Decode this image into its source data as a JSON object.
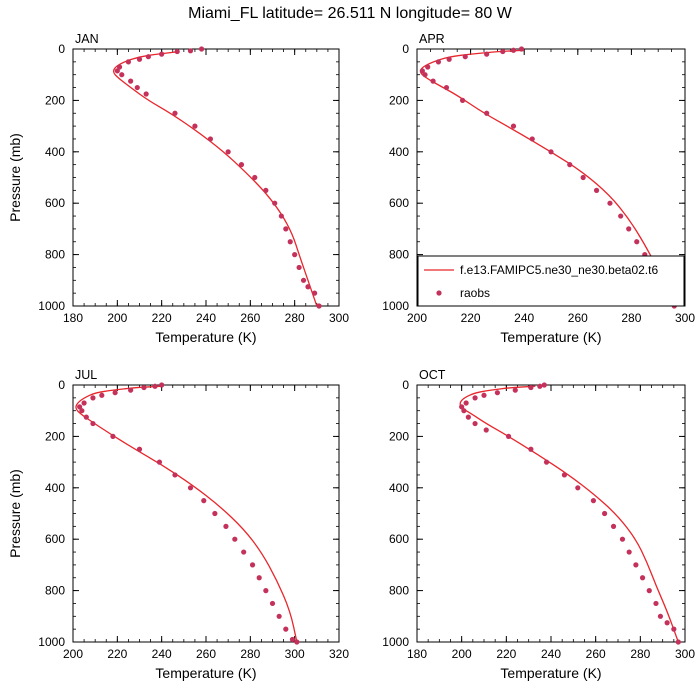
{
  "title": "Miami_FL  latitude= 26.511 N longitude= 80 W",
  "legend": {
    "model_label": "f.e13.FAMIPC5.ne30_ne30.beta02.t6",
    "obs_label": "raobs"
  },
  "colors": {
    "model_line": "#e8262b",
    "obs_marker": "#c4315b",
    "axis": "#000000",
    "background": "#ffffff"
  },
  "chart_data": [
    {
      "type": "line",
      "panel": "JAN",
      "xlabel": "Temperature (K)",
      "ylabel": "Pressure (mb)",
      "xlim": [
        180,
        300
      ],
      "ylim": [
        1000,
        0
      ],
      "xticks": [
        "180",
        "200",
        "220",
        "240",
        "260",
        "280",
        "300"
      ],
      "yticks": [
        "0",
        "200",
        "400",
        "600",
        "800",
        "1000"
      ],
      "series": [
        {
          "kind": "line",
          "x": [
            228,
            218,
            210,
            203,
            199,
            198,
            200,
            206,
            214,
            224,
            236,
            248,
            258,
            267,
            274,
            279,
            282,
            286,
            290
          ],
          "y": [
            10,
            20,
            30,
            50,
            70,
            90,
            110,
            150,
            200,
            250,
            320,
            400,
            480,
            560,
            640,
            720,
            800,
            900,
            1000
          ]
        },
        {
          "kind": "scatter",
          "x": [
            238,
            233,
            227,
            220,
            214,
            210,
            205,
            201,
            200,
            202,
            206,
            209,
            213,
            226,
            235,
            242,
            250,
            256,
            262,
            267,
            271,
            274,
            276,
            278,
            280,
            282,
            284,
            286,
            289,
            291
          ],
          "y": [
            0,
            7,
            10,
            20,
            30,
            40,
            50,
            70,
            85,
            100,
            125,
            150,
            175,
            250,
            300,
            350,
            400,
            450,
            500,
            550,
            600,
            650,
            700,
            750,
            800,
            850,
            900,
            925,
            950,
            1000
          ]
        }
      ]
    },
    {
      "type": "line",
      "panel": "APR",
      "xlabel": "Temperature (K)",
      "ylabel": "",
      "xlim": [
        200,
        300
      ],
      "ylim": [
        1000,
        0
      ],
      "xticks": [
        "200",
        "220",
        "240",
        "260",
        "280",
        "300"
      ],
      "yticks": [
        "0",
        "200",
        "400",
        "600",
        "800",
        "1000"
      ],
      "series": [
        {
          "kind": "line",
          "x": [
            240,
            230,
            220,
            212,
            206,
            202,
            201,
            203,
            208,
            215,
            225,
            237,
            250,
            262,
            272,
            279,
            285,
            291,
            296
          ],
          "y": [
            5,
            10,
            20,
            30,
            50,
            70,
            90,
            110,
            140,
            180,
            250,
            320,
            400,
            480,
            570,
            660,
            760,
            880,
            1000
          ]
        },
        {
          "kind": "scatter",
          "x": [
            239,
            236,
            232,
            226,
            218,
            212,
            208,
            204,
            202,
            203,
            206,
            211,
            217,
            226,
            236,
            243,
            250,
            257,
            262,
            267,
            272,
            276,
            279,
            282,
            285,
            288,
            290,
            293,
            296
          ],
          "y": [
            0,
            5,
            10,
            20,
            30,
            40,
            50,
            70,
            85,
            100,
            125,
            150,
            200,
            250,
            300,
            350,
            400,
            450,
            500,
            550,
            600,
            650,
            700,
            750,
            800,
            850,
            900,
            950,
            1000
          ]
        }
      ]
    },
    {
      "type": "line",
      "panel": "JUL",
      "xlabel": "Temperature (K)",
      "ylabel": "Pressure (mb)",
      "xlim": [
        200,
        320
      ],
      "ylim": [
        1000,
        0
      ],
      "xticks": [
        "200",
        "220",
        "240",
        "260",
        "280",
        "300",
        "320"
      ],
      "yticks": [
        "0",
        "200",
        "400",
        "600",
        "800",
        "1000"
      ],
      "series": [
        {
          "kind": "line",
          "x": [
            240,
            228,
            218,
            210,
            205,
            202,
            201,
            203,
            208,
            215,
            226,
            240,
            254,
            266,
            277,
            285,
            292,
            298,
            301
          ],
          "y": [
            5,
            10,
            20,
            30,
            50,
            70,
            90,
            110,
            140,
            180,
            240,
            310,
            390,
            470,
            560,
            650,
            760,
            880,
            1000
          ]
        },
        {
          "kind": "scatter",
          "x": [
            240,
            237,
            232,
            226,
            219,
            213,
            209,
            205,
            203,
            204,
            206,
            209,
            218,
            230,
            239,
            246,
            253,
            259,
            264,
            269,
            273,
            277,
            281,
            284,
            287,
            290,
            293,
            296,
            299,
            301
          ],
          "y": [
            0,
            5,
            10,
            20,
            30,
            40,
            50,
            70,
            85,
            100,
            125,
            150,
            200,
            250,
            300,
            350,
            400,
            450,
            500,
            550,
            600,
            650,
            700,
            750,
            800,
            850,
            900,
            950,
            990,
            1000
          ]
        }
      ]
    },
    {
      "type": "line",
      "panel": "OCT",
      "xlabel": "Temperature (K)",
      "ylabel": "",
      "xlim": [
        180,
        300
      ],
      "ylim": [
        1000,
        0
      ],
      "xticks": [
        "180",
        "200",
        "220",
        "240",
        "260",
        "280",
        "300"
      ],
      "yticks": [
        "0",
        "200",
        "400",
        "600",
        "800",
        "1000"
      ],
      "series": [
        {
          "kind": "line",
          "x": [
            233,
            222,
            213,
            206,
            201,
            199,
            200,
            204,
            211,
            221,
            234,
            248,
            260,
            270,
            278,
            283,
            287,
            292,
            297
          ],
          "y": [
            5,
            10,
            20,
            30,
            50,
            70,
            90,
            110,
            150,
            200,
            270,
            350,
            430,
            510,
            600,
            690,
            780,
            880,
            1000
          ]
        },
        {
          "kind": "scatter",
          "x": [
            237,
            235,
            231,
            224,
            216,
            210,
            206,
            202,
            200,
            201,
            203,
            206,
            211,
            221,
            231,
            238,
            246,
            252,
            259,
            264,
            268,
            272,
            275,
            278,
            281,
            284,
            287,
            289,
            292,
            295,
            297
          ],
          "y": [
            0,
            5,
            10,
            20,
            30,
            40,
            50,
            70,
            85,
            100,
            125,
            150,
            175,
            200,
            250,
            300,
            350,
            400,
            450,
            500,
            550,
            600,
            650,
            700,
            750,
            800,
            850,
            900,
            925,
            950,
            1000
          ]
        }
      ]
    }
  ]
}
